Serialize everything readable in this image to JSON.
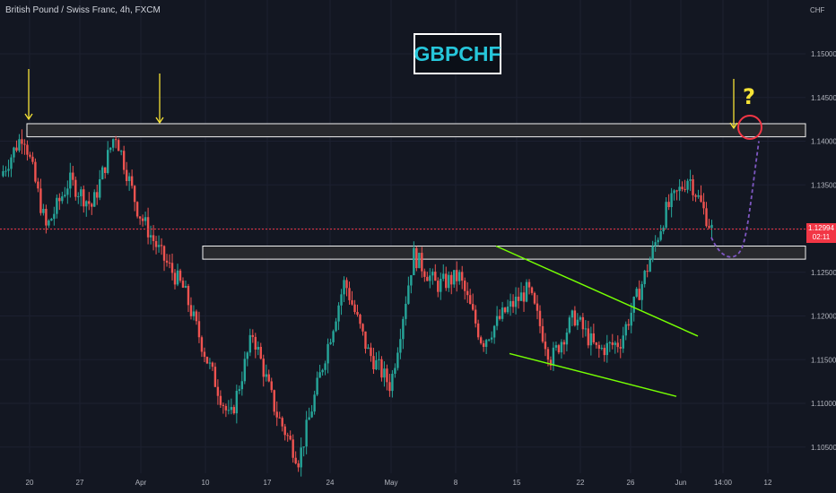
{
  "header": {
    "symbol_text": "British Pound / Swiss Franc, 4h, FXCM",
    "badge": "GBPCHF",
    "question": "?"
  },
  "axis": {
    "currency": "CHF",
    "current_price": "1.12994",
    "countdown": "02:11"
  },
  "colors": {
    "background": "#131722",
    "up": "#26a69a",
    "down": "#ef5350",
    "arrows": "#f5e236",
    "wedge": "#76ff03",
    "projection": "#7e57c2",
    "circle": "#f23645",
    "zone_fill": "#2a2a2e",
    "zone_border": "#ffffff"
  },
  "chart_data": {
    "type": "candlestick",
    "symbol": "GBPCHF",
    "timeframe": "4h",
    "exchange": "FXCM",
    "ylim": [
      1.1025,
      1.1575
    ],
    "y_ticks": [
      "1.15000",
      "1.14500",
      "1.14000",
      "1.13500",
      "1.13000",
      "1.12500",
      "1.12000",
      "1.11500",
      "1.11000",
      "1.10500"
    ],
    "x_ticks": [
      "20",
      "27",
      "Apr",
      "10",
      "17",
      "24",
      "May",
      "8",
      "15",
      "22",
      "26",
      "Jun",
      "14:00",
      "12"
    ],
    "current_price": 1.12994,
    "anchors": [
      {
        "label": "20",
        "price": 1.136
      },
      {
        "label": "",
        "price": 1.141
      },
      {
        "label": "27",
        "price": 1.13
      },
      {
        "label": "",
        "price": 1.1355
      },
      {
        "label": "Apr",
        "price": 1.1325
      },
      {
        "label": "",
        "price": 1.141
      },
      {
        "label": "",
        "price": 1.132
      },
      {
        "label": "10",
        "price": 1.127
      },
      {
        "label": "",
        "price": 1.123
      },
      {
        "label": "17",
        "price": 1.115
      },
      {
        "label": "",
        "price": 1.108
      },
      {
        "label": "",
        "price": 1.118
      },
      {
        "label": "24",
        "price": 1.109
      },
      {
        "label": "",
        "price": 1.1035
      },
      {
        "label": "",
        "price": 1.114
      },
      {
        "label": "May",
        "price": 1.124
      },
      {
        "label": "",
        "price": 1.116
      },
      {
        "label": "",
        "price": 1.112
      },
      {
        "label": "8",
        "price": 1.127
      },
      {
        "label": "",
        "price": 1.1235
      },
      {
        "label": "",
        "price": 1.1245
      },
      {
        "label": "15",
        "price": 1.117
      },
      {
        "label": "",
        "price": 1.1205
      },
      {
        "label": "",
        "price": 1.123
      },
      {
        "label": "22",
        "price": 1.115
      },
      {
        "label": "",
        "price": 1.12
      },
      {
        "label": "26",
        "price": 1.116
      },
      {
        "label": "",
        "price": 1.117
      },
      {
        "label": "Jun",
        "price": 1.124
      },
      {
        "label": "",
        "price": 1.132
      },
      {
        "label": "",
        "price": 1.136
      },
      {
        "label": "",
        "price": 1.1299
      }
    ],
    "zones": [
      {
        "name": "resistance",
        "from": 1.1405,
        "to": 1.142
      },
      {
        "name": "support",
        "from": 1.1265,
        "to": 1.128
      }
    ],
    "wedge": {
      "upper": [
        {
          "x": "May 10",
          "price": 1.128
        },
        {
          "x": "Jun 2",
          "price": 1.1177
        }
      ],
      "lower": [
        {
          "x": "May 13",
          "price": 1.1157
        },
        {
          "x": "Jun 2",
          "price": 1.1108
        }
      ]
    },
    "projection": [
      {
        "price": 1.129
      },
      {
        "price": 1.127
      },
      {
        "price": 1.134
      },
      {
        "price": 1.14
      }
    ]
  }
}
